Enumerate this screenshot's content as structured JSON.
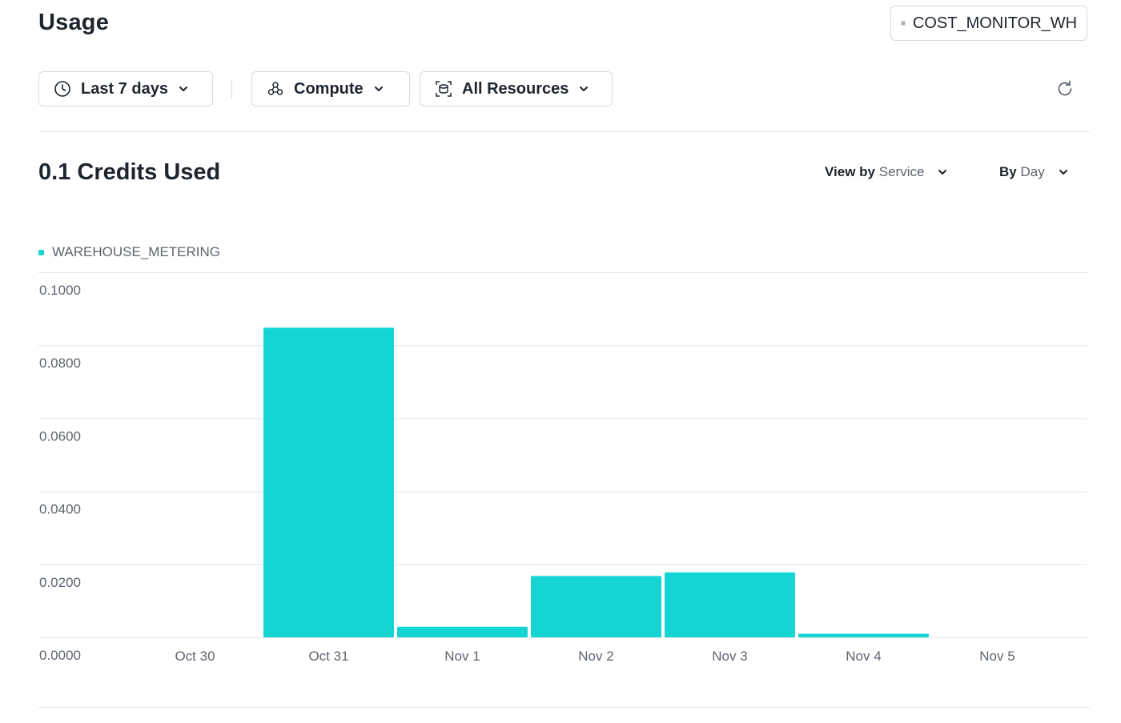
{
  "header": {
    "title": "Usage",
    "warehouse": "COST_MONITOR_WH"
  },
  "filters": {
    "time_range": "Last 7 days",
    "category": "Compute",
    "resources": "All Resources"
  },
  "summary": {
    "credits_used": "0.1 Credits Used",
    "view_by_label": "View by",
    "view_by_value": "Service",
    "group_by_label": "By",
    "group_by_value": "Day"
  },
  "icons": {
    "time": "clock-icon",
    "category": "compute-icon",
    "resources": "resources-icon",
    "refresh": "refresh-icon",
    "dropdown": "chevron-down-icon"
  },
  "colors": {
    "series": "#14d4d4",
    "text": "#1e252f",
    "muted": "#5d6470",
    "border": "#d5d9df",
    "gridline": "#e4e7eb"
  },
  "chart_data": {
    "type": "bar",
    "categories": [
      "Oct 30",
      "Oct 31",
      "Nov 1",
      "Nov 2",
      "Nov 3",
      "Nov 4",
      "Nov 5"
    ],
    "series": [
      {
        "name": "WAREHOUSE_METERING",
        "values": [
          0,
          0.0848,
          0.0029,
          0.0168,
          0.0178,
          0.001,
          0
        ]
      }
    ],
    "yticks": [
      "0.0000",
      "0.0200",
      "0.0400",
      "0.0600",
      "0.0800",
      "0.1000"
    ],
    "ylim": [
      0,
      0.1
    ],
    "grid": true,
    "legend": "top-left",
    "xlabel": "",
    "ylabel": ""
  }
}
